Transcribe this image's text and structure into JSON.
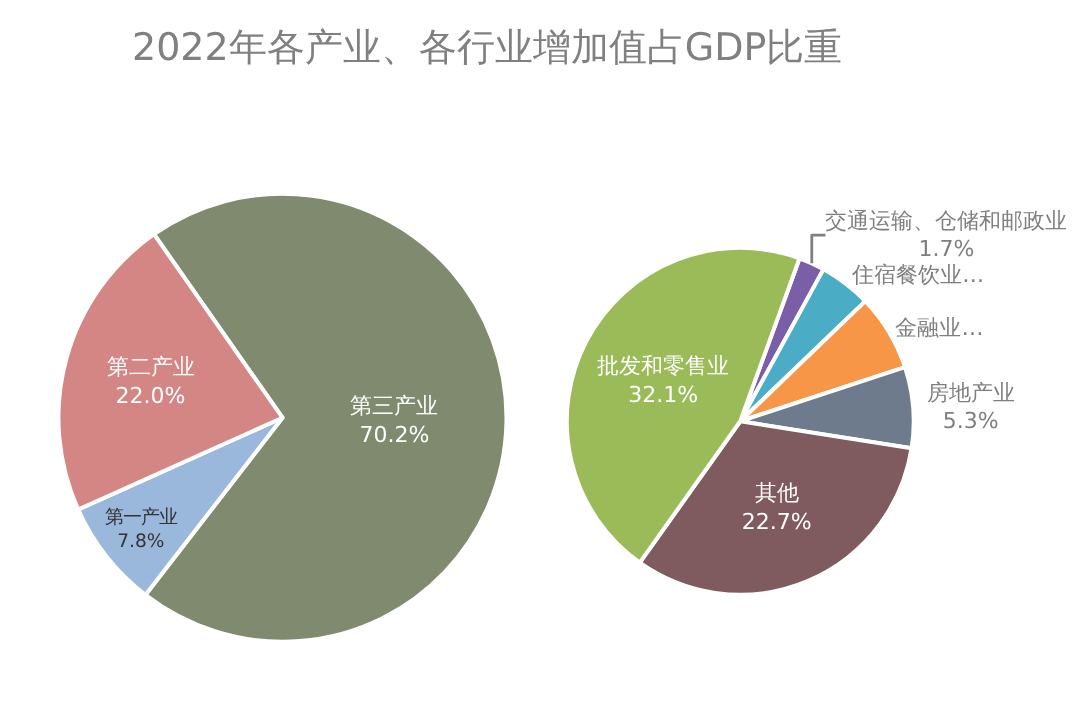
{
  "chart_data": [
    {
      "type": "pie",
      "title": "2022年各产业、各行业增加值占GDP比重",
      "categories": [
        "第三产业",
        "第一产业",
        "第二产业"
      ],
      "values": [
        70.2,
        7.8,
        22.0
      ],
      "value_labels": [
        "70.2%",
        "7.8%",
        "22.0%"
      ],
      "colors": [
        "#7f8a6e",
        "#9ab7dc",
        "#d38683"
      ],
      "legend": false
    },
    {
      "type": "pie",
      "categories": [
        "交通运输、仓储和邮政业",
        "住宿餐饮业…",
        "金融业…",
        "房地产业",
        "其他",
        "批发和零售业"
      ],
      "values": [
        1.7,
        3.4,
        5.0,
        5.3,
        22.7,
        32.1
      ],
      "value_labels": [
        "1.7%",
        null,
        null,
        "5.3%",
        "22.7%",
        "32.1%"
      ],
      "colors": [
        "#7b5ea8",
        "#4bacc6",
        "#f79646",
        "#6d7b8d",
        "#7f5a5e",
        "#9bbb59"
      ],
      "legend": false
    }
  ]
}
